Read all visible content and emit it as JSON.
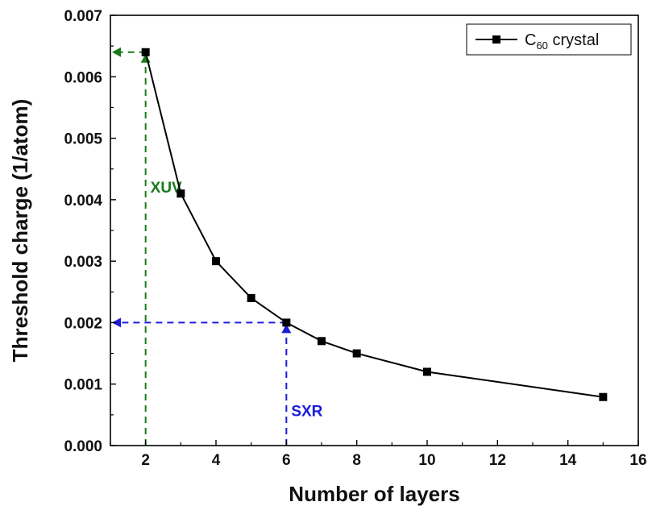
{
  "chart_data": {
    "type": "line",
    "xlabel": "Number of layers",
    "ylabel": "Threshold charge (1/atom)",
    "xlim": [
      1,
      16
    ],
    "ylim": [
      0,
      0.007
    ],
    "x_ticks": [
      2,
      4,
      6,
      8,
      10,
      12,
      14,
      16
    ],
    "x_tick_labels": [
      "2",
      "4",
      "6",
      "8",
      "10",
      "12",
      "14",
      "16"
    ],
    "y_ticks": [
      0,
      0.001,
      0.002,
      0.003,
      0.004,
      0.005,
      0.006,
      0.007
    ],
    "y_tick_labels": [
      "0.000",
      "0.001",
      "0.002",
      "0.003",
      "0.004",
      "0.005",
      "0.006",
      "0.007"
    ],
    "grid": false,
    "legend_position": "top-right",
    "series": [
      {
        "name_main": "C",
        "name_sub": "60",
        "name_rest": " crystal",
        "color": "#000000",
        "marker": "square",
        "x": [
          2,
          3,
          4,
          5,
          6,
          7,
          8,
          10,
          15
        ],
        "y": [
          0.0064,
          0.0041,
          0.003,
          0.0024,
          0.002,
          0.0017,
          0.0015,
          0.0012,
          0.00079
        ]
      }
    ],
    "annotations": [
      {
        "label": "XUV",
        "color": "#1a7a1a",
        "x": 2,
        "y": 0.0064
      },
      {
        "label": "SXR",
        "color": "#1a1adb",
        "x": 6,
        "y": 0.002
      }
    ]
  }
}
